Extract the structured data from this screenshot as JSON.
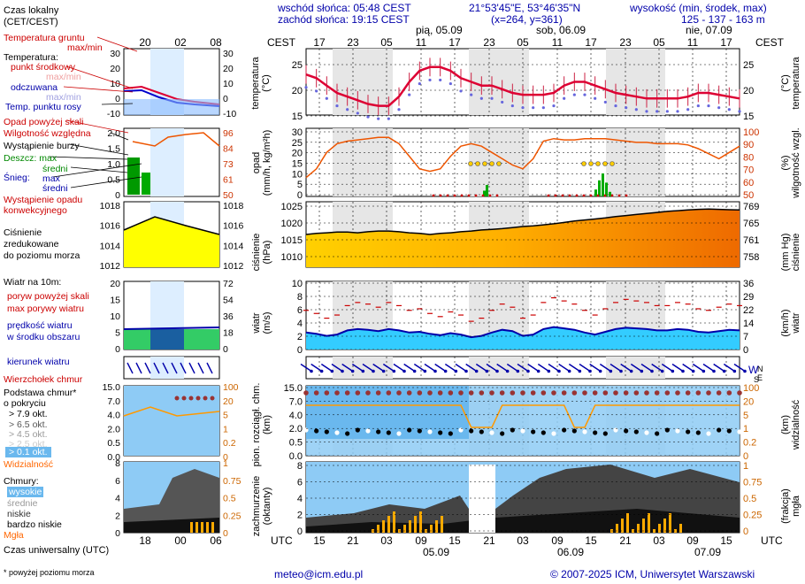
{
  "header": {
    "sunrise": "wschód słońca: 05:48 CEST",
    "sunset": "zachód słońca: 19:15 CEST",
    "coords": "21°53'45\"E, 53°46'35\"N",
    "grid": "(x=264, y=361)",
    "elev_label": "wysokość (min, środek, max)",
    "elev_values": "125 - 137 - 163 m"
  },
  "top_axis": {
    "tz": "CEST",
    "hours": [
      "17",
      "23",
      "05",
      "11",
      "17",
      "23",
      "05",
      "11",
      "17",
      "23",
      "05",
      "11",
      "17"
    ],
    "days": [
      "pią, 05.09",
      "sob, 06.09",
      "nie, 07.09"
    ]
  },
  "bottom_axis": {
    "tz": "UTC",
    "hours": [
      "15",
      "21",
      "03",
      "09",
      "15",
      "21",
      "03",
      "09",
      "15",
      "21",
      "03",
      "09",
      "15"
    ],
    "dates": [
      "05.09",
      "06.09",
      "07.09"
    ]
  },
  "legend": {
    "time_local": "Czas lokalny",
    "time_local_sub": "(CET/CEST)",
    "legend_hours_top": [
      "20",
      "02",
      "08"
    ],
    "legend_hours_bottom": [
      "18",
      "00",
      "06"
    ],
    "temp_ground": "Temperatura gruntu",
    "max_min": "max/min",
    "temperature": "Temperatura:",
    "mid_point": "punkt środkowy",
    "max_min2": "max/min",
    "felt": "odczuwana",
    "max_min3": "max/min",
    "dew": "Temp. punktu rosy",
    "precip_above": "Opad powyżej skali",
    "humidity": "Wilgotność względna",
    "storm": "Wystąpienie burzy",
    "rain": "Deszcz: max",
    "rain_avg": "średni",
    "snow": "Śnieg:",
    "snow_max": "max",
    "snow_avg": "średni",
    "conv": "Wystąpienie opadu",
    "conv2": "konwekcyjnego",
    "pressure": "Ciśnienie",
    "pressure2": "zredukowane",
    "pressure3": "do poziomu morza",
    "wind": "Wiatr na 10m:",
    "gust_above": "poryw powyżej skali",
    "gust_max": "max porywy wiatru",
    "wind_speed": "prędkość wiatru",
    "wind_area": "w środku obszaru",
    "wind_dir": "kierunek wiatru",
    "cloud_top": "Wierzchołek chmur",
    "cloud_base": "Podstawa chmur*",
    "cloud_base2": "o pokryciu",
    "okt": [
      "> 7.9 okt.",
      "> 6.5 okt.",
      "> 4.5 okt.",
      "> 2.5 okt.",
      "> 0.1 okt."
    ],
    "visibility": "Widzialność",
    "clouds": "Chmury:",
    "high": "wysokie",
    "mid": "średnie",
    "low": "niskie",
    "vlow": "bardzo niskie",
    "fog": "Mgła",
    "utc": "Czas uniwersalny (UTC)",
    "note": "* powyżej poziomu morza"
  },
  "panels": {
    "temp": {
      "left": "temperatura",
      "left2": "(°C)",
      "right": "(°C)",
      "right2": "temperatura",
      "ticks": [
        "25",
        "20",
        "15"
      ]
    },
    "precip": {
      "left": "opad",
      "left2": "(mm/h, kg/m²h)",
      "right": "(%)",
      "right2": "wilgotność wzgl.",
      "ticks_l": [
        "30",
        "25",
        "20",
        "15",
        "10",
        "5",
        "0"
      ],
      "ticks_r": [
        "100",
        "90",
        "80",
        "70",
        "60",
        "50"
      ]
    },
    "pressure": {
      "left": "ciśnienie",
      "left2": "(hPa)",
      "right": "(mm Hg)",
      "right2": "ciśnienie",
      "ticks_l": [
        "1025",
        "1020",
        "1015",
        "1010"
      ],
      "ticks_r": [
        "769",
        "765",
        "761",
        "758"
      ]
    },
    "wind": {
      "left": "wiatr",
      "left2": "(m/s)",
      "right": "(km/h)",
      "right2": "wiatr",
      "ticks_l": [
        "10",
        "8",
        "6",
        "4",
        "2",
        "0"
      ],
      "ticks_r": [
        "36",
        "29",
        "22",
        "14",
        "7",
        "0"
      ]
    },
    "clouds": {
      "left": "pion. rozciągł. chm.",
      "left2": "(km)",
      "right": "(km)",
      "right2": "widzialność",
      "ticks_l": [
        "15.0",
        "7.0",
        "4.0",
        "2.0",
        "0.5",
        "0.0"
      ],
      "ticks_r": [
        "100",
        "20",
        "5",
        "1",
        "0.2",
        "0"
      ]
    },
    "cover": {
      "left": "zachmurzenie",
      "left2": "(oktanty)",
      "right": "(frakcja)",
      "right2": "mgła",
      "ticks_l": [
        "8",
        "6",
        "4",
        "2",
        "0"
      ],
      "ticks_r": [
        "1",
        "0.75",
        "0.5",
        "0.25",
        "0"
      ]
    }
  },
  "legend_ticks": {
    "temp_l": [
      "30",
      "20",
      "10",
      "0",
      "-10"
    ],
    "temp_r": [
      "30",
      "20",
      "10",
      "0",
      "-10"
    ],
    "precip_l": [
      "2.0",
      "1.5",
      "1.0",
      "0.5",
      "0"
    ],
    "precip_r": [
      "96",
      "84",
      "73",
      "61",
      "50"
    ],
    "press_l": [
      "1018",
      "1016",
      "1014",
      "1012"
    ],
    "press_r": [
      "1018",
      "1016",
      "1014",
      "1012"
    ],
    "wind_l": [
      "20",
      "15",
      "10",
      "5",
      "0"
    ],
    "wind_r": [
      "72",
      "54",
      "36",
      "18",
      "0"
    ],
    "cloud_l": [
      "15.0",
      "7.0",
      "4.0",
      "2.0",
      "0.5",
      "0.0"
    ],
    "cloud_r": [
      "100",
      "20",
      "5",
      "1",
      "0.2",
      "0"
    ],
    "cover_l": [
      "8",
      "6",
      "4",
      "2",
      "0"
    ],
    "cover_r": [
      "1",
      "0.75",
      "0.5",
      "0.25",
      "0"
    ]
  },
  "footer": {
    "email": "meteo@icm.edu.pl",
    "copyright": "© 2007-2025 ICM, Uniwersytet Warszawski"
  },
  "colors": {
    "accent": "#0000aa",
    "temp": "#dd0033",
    "precip": "#ee5500",
    "pressure": "#f0a000",
    "wind": "#00aaee"
  },
  "chart_data": [
    {
      "type": "line",
      "title": "temperatura",
      "ylabel": "(°C)",
      "ylim": [
        12,
        30
      ],
      "series": [
        {
          "name": "temperatura",
          "values": [
            23,
            22,
            20,
            18,
            17,
            16,
            15,
            14.5,
            14.5,
            17,
            21,
            24,
            25,
            25,
            24,
            22,
            21,
            20,
            20,
            19,
            18,
            17.5,
            17.5,
            17.5,
            18,
            20,
            21,
            21,
            20,
            19,
            18,
            17.5,
            17,
            16.5,
            16.5,
            16.5,
            16.5,
            17,
            18,
            18,
            17.5,
            17,
            16.5
          ]
        }
      ]
    },
    {
      "type": "line",
      "title": "opad",
      "ylabel": "(mm/h, kg/m²h)",
      "ylim": [
        0,
        30
      ],
      "series": [
        {
          "name": "wilgotność wzgl.",
          "values": [
            65,
            72,
            85,
            92,
            94,
            95,
            96,
            97,
            97,
            92,
            82,
            72,
            70,
            72,
            82,
            90,
            92,
            90,
            85,
            80,
            75,
            72,
            80,
            94,
            96,
            95,
            95,
            96,
            96,
            96,
            95,
            94,
            93,
            93,
            92,
            92,
            92,
            91,
            88,
            84,
            80,
            85,
            90
          ]
        }
      ]
    },
    {
      "type": "area",
      "title": "ciśnienie",
      "ylabel": "(hPa)",
      "ylim": [
        1007,
        1026
      ],
      "series": [
        {
          "name": "ciśnienie",
          "values": [
            1016.5,
            1016.8,
            1017,
            1017.2,
            1017.2,
            1017,
            1017.3,
            1017.5,
            1017.5,
            1017.3,
            1017,
            1016.8,
            1016.5,
            1016.8,
            1017,
            1017.3,
            1017.5,
            1017.8,
            1018,
            1018.2,
            1018.5,
            1018.8,
            1019,
            1019.3,
            1019.6,
            1020,
            1020.4,
            1020.7,
            1021,
            1021.3,
            1021.7,
            1022,
            1022.3,
            1022.6,
            1022.9,
            1023.2,
            1023.4,
            1023.6,
            1023.8,
            1023.9,
            1023.8,
            1023.7,
            1023.6
          ]
        }
      ]
    },
    {
      "type": "line",
      "title": "wiatr",
      "ylabel": "(m/s)",
      "ylim": [
        0,
        10
      ],
      "series": [
        {
          "name": "prędkość wiatru",
          "values": [
            2.5,
            2.3,
            2.0,
            2.2,
            2.8,
            3.0,
            2.9,
            2.7,
            3.0,
            2.8,
            2.5,
            2.6,
            2.3,
            2.1,
            2.4,
            2.2,
            1.8,
            2.0,
            2.5,
            2.9,
            2.7,
            2.0,
            2.2,
            3.0,
            3.3,
            3.1,
            2.9,
            2.5,
            2.2,
            2.6,
            3.0,
            3.2,
            3.1,
            3.0,
            2.8,
            2.8,
            3.0,
            2.9,
            2.6,
            2.5,
            2.7,
            2.9,
            2.8
          ]
        }
      ]
    }
  ]
}
